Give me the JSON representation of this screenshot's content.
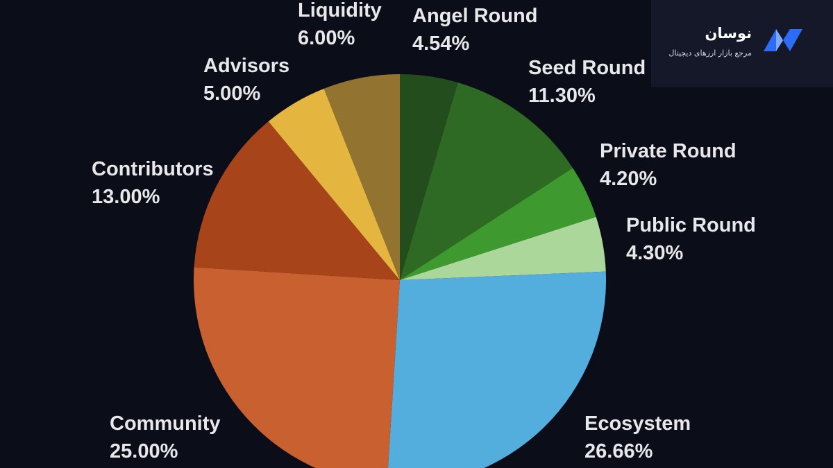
{
  "brand": {
    "name": "نوسان",
    "tagline": "مرجع بازار ارزهای دیجیتال",
    "logo_icon": "nosan-logo-icon",
    "logo_colors": [
      "#2c6cf6",
      "#8fb4ff"
    ]
  },
  "chart_data": {
    "type": "pie",
    "title": "",
    "legend": "none",
    "slices": [
      {
        "label": "Angel Round",
        "value": 4.54,
        "value_label": "4.54%",
        "color": "#234d1d"
      },
      {
        "label": "Seed Round",
        "value": 11.3,
        "value_label": "11.30%",
        "color": "#2e6a23"
      },
      {
        "label": "Private Round",
        "value": 4.2,
        "value_label": "4.20%",
        "color": "#3e9a2e"
      },
      {
        "label": "Public Round",
        "value": 4.3,
        "value_label": "4.30%",
        "color": "#acd79a"
      },
      {
        "label": "Ecosystem",
        "value": 26.66,
        "value_label": "26.66%",
        "color": "#54aedd"
      },
      {
        "label": "Community",
        "value": 25.0,
        "value_label": "25.00%",
        "color": "#c8602f"
      },
      {
        "label": "Contributors",
        "value": 13.0,
        "value_label": "13.00%",
        "color": "#a8441a"
      },
      {
        "label": "Advisors",
        "value": 5.0,
        "value_label": "5.00%",
        "color": "#e4b640"
      },
      {
        "label": "Liquidity",
        "value": 6.0,
        "value_label": "6.00%",
        "color": "#927330"
      }
    ]
  }
}
